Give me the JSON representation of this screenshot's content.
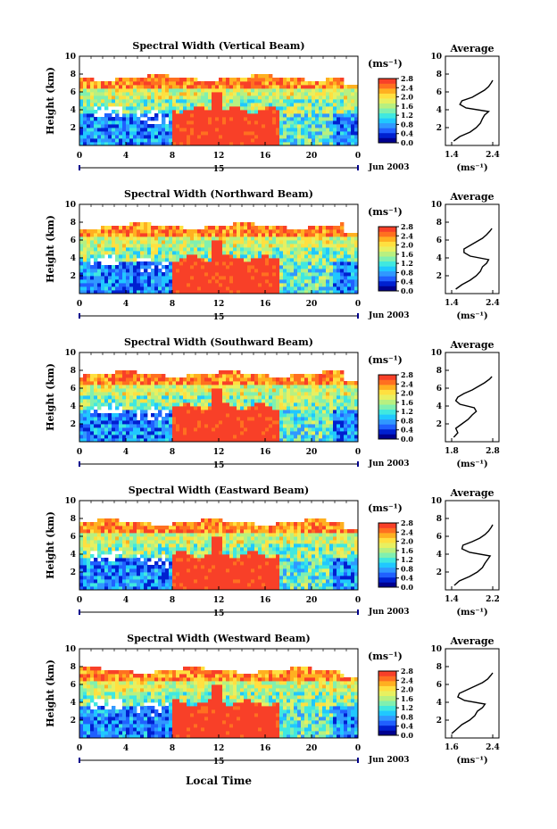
{
  "figure": {
    "xlabel": "Local Time",
    "date_label": "Jun 2003",
    "date_day": "15",
    "unit_label": "(ms⁻¹)",
    "average_title": "Average",
    "average_xlabel": "(ms⁻¹)"
  },
  "chart_data": [
    {
      "type": "heatmap",
      "title": "Spectral Width (Vertical Beam)",
      "ylabel": "Height (km)",
      "xlabel": "",
      "x_range": [
        0,
        24
      ],
      "x_ticks": [
        "0",
        "4",
        "8",
        "12",
        "16",
        "20",
        "0"
      ],
      "ylim": [
        0,
        10
      ],
      "y_ticks": [
        "2",
        "4",
        "6",
        "8",
        "10"
      ],
      "colorbar": {
        "range": [
          0.0,
          2.8
        ],
        "ticks": [
          "2.8",
          "2.4",
          "2.0",
          "1.6",
          "1.2",
          "0.8",
          "0.4",
          "0.0"
        ]
      },
      "average_profile": {
        "title": "Average",
        "x_ticks": [
          "1.4",
          "2.4"
        ],
        "xlim": [
          1.4,
          2.4
        ],
        "y_ticks": [
          "2",
          "4",
          "6",
          "8",
          "10"
        ],
        "height_km": [
          0.5,
          1.0,
          1.5,
          2.0,
          2.5,
          3.0,
          3.4,
          3.8,
          4.2,
          4.6,
          5.0,
          5.4,
          5.8,
          6.2,
          6.6,
          7.0,
          7.3
        ],
        "width": [
          1.45,
          1.6,
          1.85,
          2.0,
          2.1,
          2.15,
          2.2,
          2.3,
          1.75,
          1.6,
          1.65,
          1.9,
          2.05,
          2.2,
          2.3,
          2.36,
          2.4
        ]
      }
    },
    {
      "type": "heatmap",
      "title": "Spectral Width (Northward Beam)",
      "ylabel": "Height (km)",
      "xlabel": "",
      "x_range": [
        0,
        24
      ],
      "x_ticks": [
        "0",
        "4",
        "8",
        "12",
        "16",
        "20",
        "0"
      ],
      "ylim": [
        0,
        10
      ],
      "y_ticks": [
        "2",
        "4",
        "6",
        "8",
        "10"
      ],
      "colorbar": {
        "range": [
          0.0,
          2.8
        ],
        "ticks": [
          "2.8",
          "2.4",
          "2.0",
          "1.6",
          "1.2",
          "0.8",
          "0.4",
          "0.0"
        ]
      },
      "average_profile": {
        "title": "Average",
        "x_ticks": [
          "1.4",
          "2.4"
        ],
        "xlim": [
          1.4,
          2.4
        ],
        "y_ticks": [
          "2",
          "4",
          "6",
          "8",
          "10"
        ],
        "height_km": [
          0.5,
          1.0,
          1.5,
          2.0,
          2.5,
          3.0,
          3.4,
          3.8,
          4.2,
          4.6,
          5.0,
          5.4,
          5.8,
          6.2,
          6.6,
          7.0,
          7.3
        ],
        "width": [
          1.5,
          1.65,
          1.85,
          2.0,
          2.1,
          2.15,
          2.25,
          2.3,
          1.85,
          1.7,
          1.7,
          1.85,
          2.0,
          2.15,
          2.25,
          2.33,
          2.38
        ]
      }
    },
    {
      "type": "heatmap",
      "title": "Spectral Width (Southward Beam)",
      "ylabel": "Height (km)",
      "xlabel": "",
      "x_range": [
        0,
        24
      ],
      "x_ticks": [
        "0",
        "4",
        "8",
        "12",
        "16",
        "20",
        "0"
      ],
      "ylim": [
        0,
        10
      ],
      "y_ticks": [
        "2",
        "4",
        "6",
        "8",
        "10"
      ],
      "colorbar": {
        "range": [
          0.0,
          2.8
        ],
        "ticks": [
          "2.8",
          "2.4",
          "2.0",
          "1.6",
          "1.2",
          "0.8",
          "0.4",
          "0.0"
        ]
      },
      "average_profile": {
        "title": "Average",
        "x_ticks": [
          "1.8",
          "2.8"
        ],
        "xlim": [
          1.8,
          2.8
        ],
        "y_ticks": [
          "2",
          "4",
          "6",
          "8",
          "10"
        ],
        "height_km": [
          0.5,
          1.0,
          1.5,
          2.0,
          2.5,
          3.0,
          3.4,
          3.8,
          4.2,
          4.6,
          5.0,
          5.4,
          5.8,
          6.2,
          6.6,
          7.0,
          7.3
        ],
        "width": [
          1.85,
          1.95,
          1.9,
          2.05,
          2.2,
          2.3,
          2.4,
          2.35,
          2.0,
          1.9,
          1.95,
          2.1,
          2.3,
          2.45,
          2.6,
          2.72,
          2.78
        ]
      }
    },
    {
      "type": "heatmap",
      "title": "Spectral Width (Eastward Beam)",
      "ylabel": "Height (km)",
      "xlabel": "",
      "x_range": [
        0,
        24
      ],
      "x_ticks": [
        "0",
        "4",
        "8",
        "12",
        "16",
        "20",
        "0"
      ],
      "ylim": [
        0,
        10
      ],
      "y_ticks": [
        "2",
        "4",
        "6",
        "8",
        "10"
      ],
      "colorbar": {
        "range": [
          0.0,
          2.8
        ],
        "ticks": [
          "2.8",
          "2.4",
          "2.0",
          "1.6",
          "1.2",
          "0.8",
          "0.4",
          "0.0"
        ]
      },
      "average_profile": {
        "title": "Average",
        "x_ticks": [
          "1.4",
          "2.2"
        ],
        "xlim": [
          1.4,
          2.2
        ],
        "y_ticks": [
          "2",
          "4",
          "6",
          "8",
          "10"
        ],
        "height_km": [
          0.5,
          1.0,
          1.5,
          2.0,
          2.5,
          3.0,
          3.4,
          3.8,
          4.2,
          4.6,
          5.0,
          5.4,
          5.8,
          6.2,
          6.6,
          7.0,
          7.3
        ],
        "width": [
          1.45,
          1.55,
          1.75,
          1.9,
          2.0,
          2.05,
          2.1,
          2.15,
          1.75,
          1.6,
          1.62,
          1.8,
          1.95,
          2.05,
          2.12,
          2.17,
          2.2
        ]
      }
    },
    {
      "type": "heatmap",
      "title": "Spectral Width (Westward Beam)",
      "ylabel": "Height (km)",
      "xlabel": "Local Time",
      "x_range": [
        0,
        24
      ],
      "x_ticks": [
        "0",
        "4",
        "8",
        "12",
        "16",
        "20",
        "0"
      ],
      "ylim": [
        0,
        10
      ],
      "y_ticks": [
        "2",
        "4",
        "6",
        "8",
        "10"
      ],
      "colorbar": {
        "range": [
          0.0,
          2.8
        ],
        "ticks": [
          "2.8",
          "2.4",
          "2.0",
          "1.6",
          "1.2",
          "0.8",
          "0.4",
          "0.0"
        ]
      },
      "average_profile": {
        "title": "Average",
        "x_ticks": [
          "1.6",
          "2.4"
        ],
        "xlim": [
          1.6,
          2.4
        ],
        "y_ticks": [
          "2",
          "4",
          "6",
          "8",
          "10"
        ],
        "height_km": [
          0.5,
          1.0,
          1.5,
          2.0,
          2.5,
          3.0,
          3.4,
          3.8,
          4.2,
          4.6,
          5.0,
          5.4,
          5.8,
          6.2,
          6.6,
          7.0,
          7.3
        ],
        "width": [
          1.6,
          1.7,
          1.8,
          1.95,
          2.05,
          2.1,
          2.2,
          2.25,
          1.85,
          1.72,
          1.75,
          1.9,
          2.05,
          2.2,
          2.3,
          2.36,
          2.4
        ]
      }
    }
  ]
}
